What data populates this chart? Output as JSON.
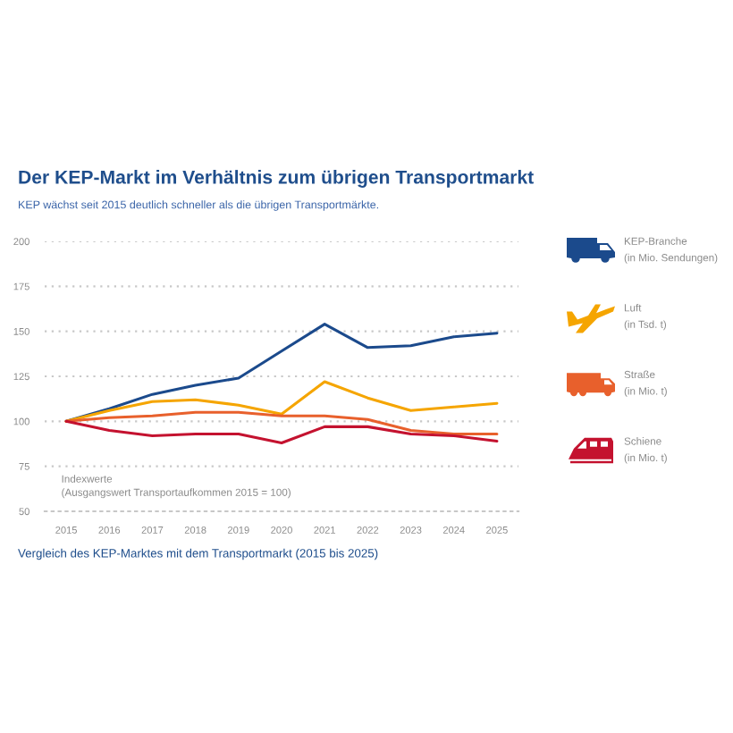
{
  "chart_data": {
    "type": "line",
    "title": "Der KEP-Markt im Verhältnis zum übrigen Transportmarkt",
    "subtitle": "KEP wächst seit 2015 deutlich schneller als die übrigen Transportmärkte.",
    "x": [
      2015,
      2016,
      2017,
      2018,
      2019,
      2020,
      2021,
      2022,
      2023,
      2024,
      2025
    ],
    "series": [
      {
        "name": "KEP-Branche\n(in Mio. Sendungen)",
        "color": "#1b4a8c",
        "values": [
          100,
          107,
          115,
          120,
          124,
          139,
          154,
          141,
          142,
          147,
          149
        ]
      },
      {
        "name": "Luft\n(in Tsd. t)",
        "color": "#f5a500",
        "values": [
          100,
          106,
          111,
          112,
          109,
          104,
          122,
          113,
          106,
          108,
          110
        ]
      },
      {
        "name": "Straße\n(in Mio. t)",
        "color": "#e8602c",
        "values": [
          100,
          102,
          103,
          105,
          105,
          103,
          103,
          101,
          95,
          93,
          93
        ]
      },
      {
        "name": "Schiene\n(in Mio. t)",
        "color": "#c4122f",
        "values": [
          100,
          95,
          92,
          93,
          93,
          88,
          97,
          97,
          93,
          92,
          89
        ]
      }
    ],
    "xlim": [
      2014.5,
      2025.5
    ],
    "ylim": [
      50,
      200
    ],
    "xticks": [
      2015,
      2016,
      2017,
      2018,
      2019,
      2020,
      2021,
      2022,
      2023,
      2024,
      2025
    ],
    "yticks": [
      50,
      75,
      100,
      125,
      150,
      175,
      200
    ],
    "grid": "y",
    "legend": "right",
    "marker": "none",
    "line_style": "solid",
    "annotations": [
      "Indexwerte\n(Ausgangswert Transportaufkommen 2015 = 100)",
      "Vergleich des KEP-Marktes mit dem Transportmarkt (2015 bis 2025)"
    ]
  }
}
